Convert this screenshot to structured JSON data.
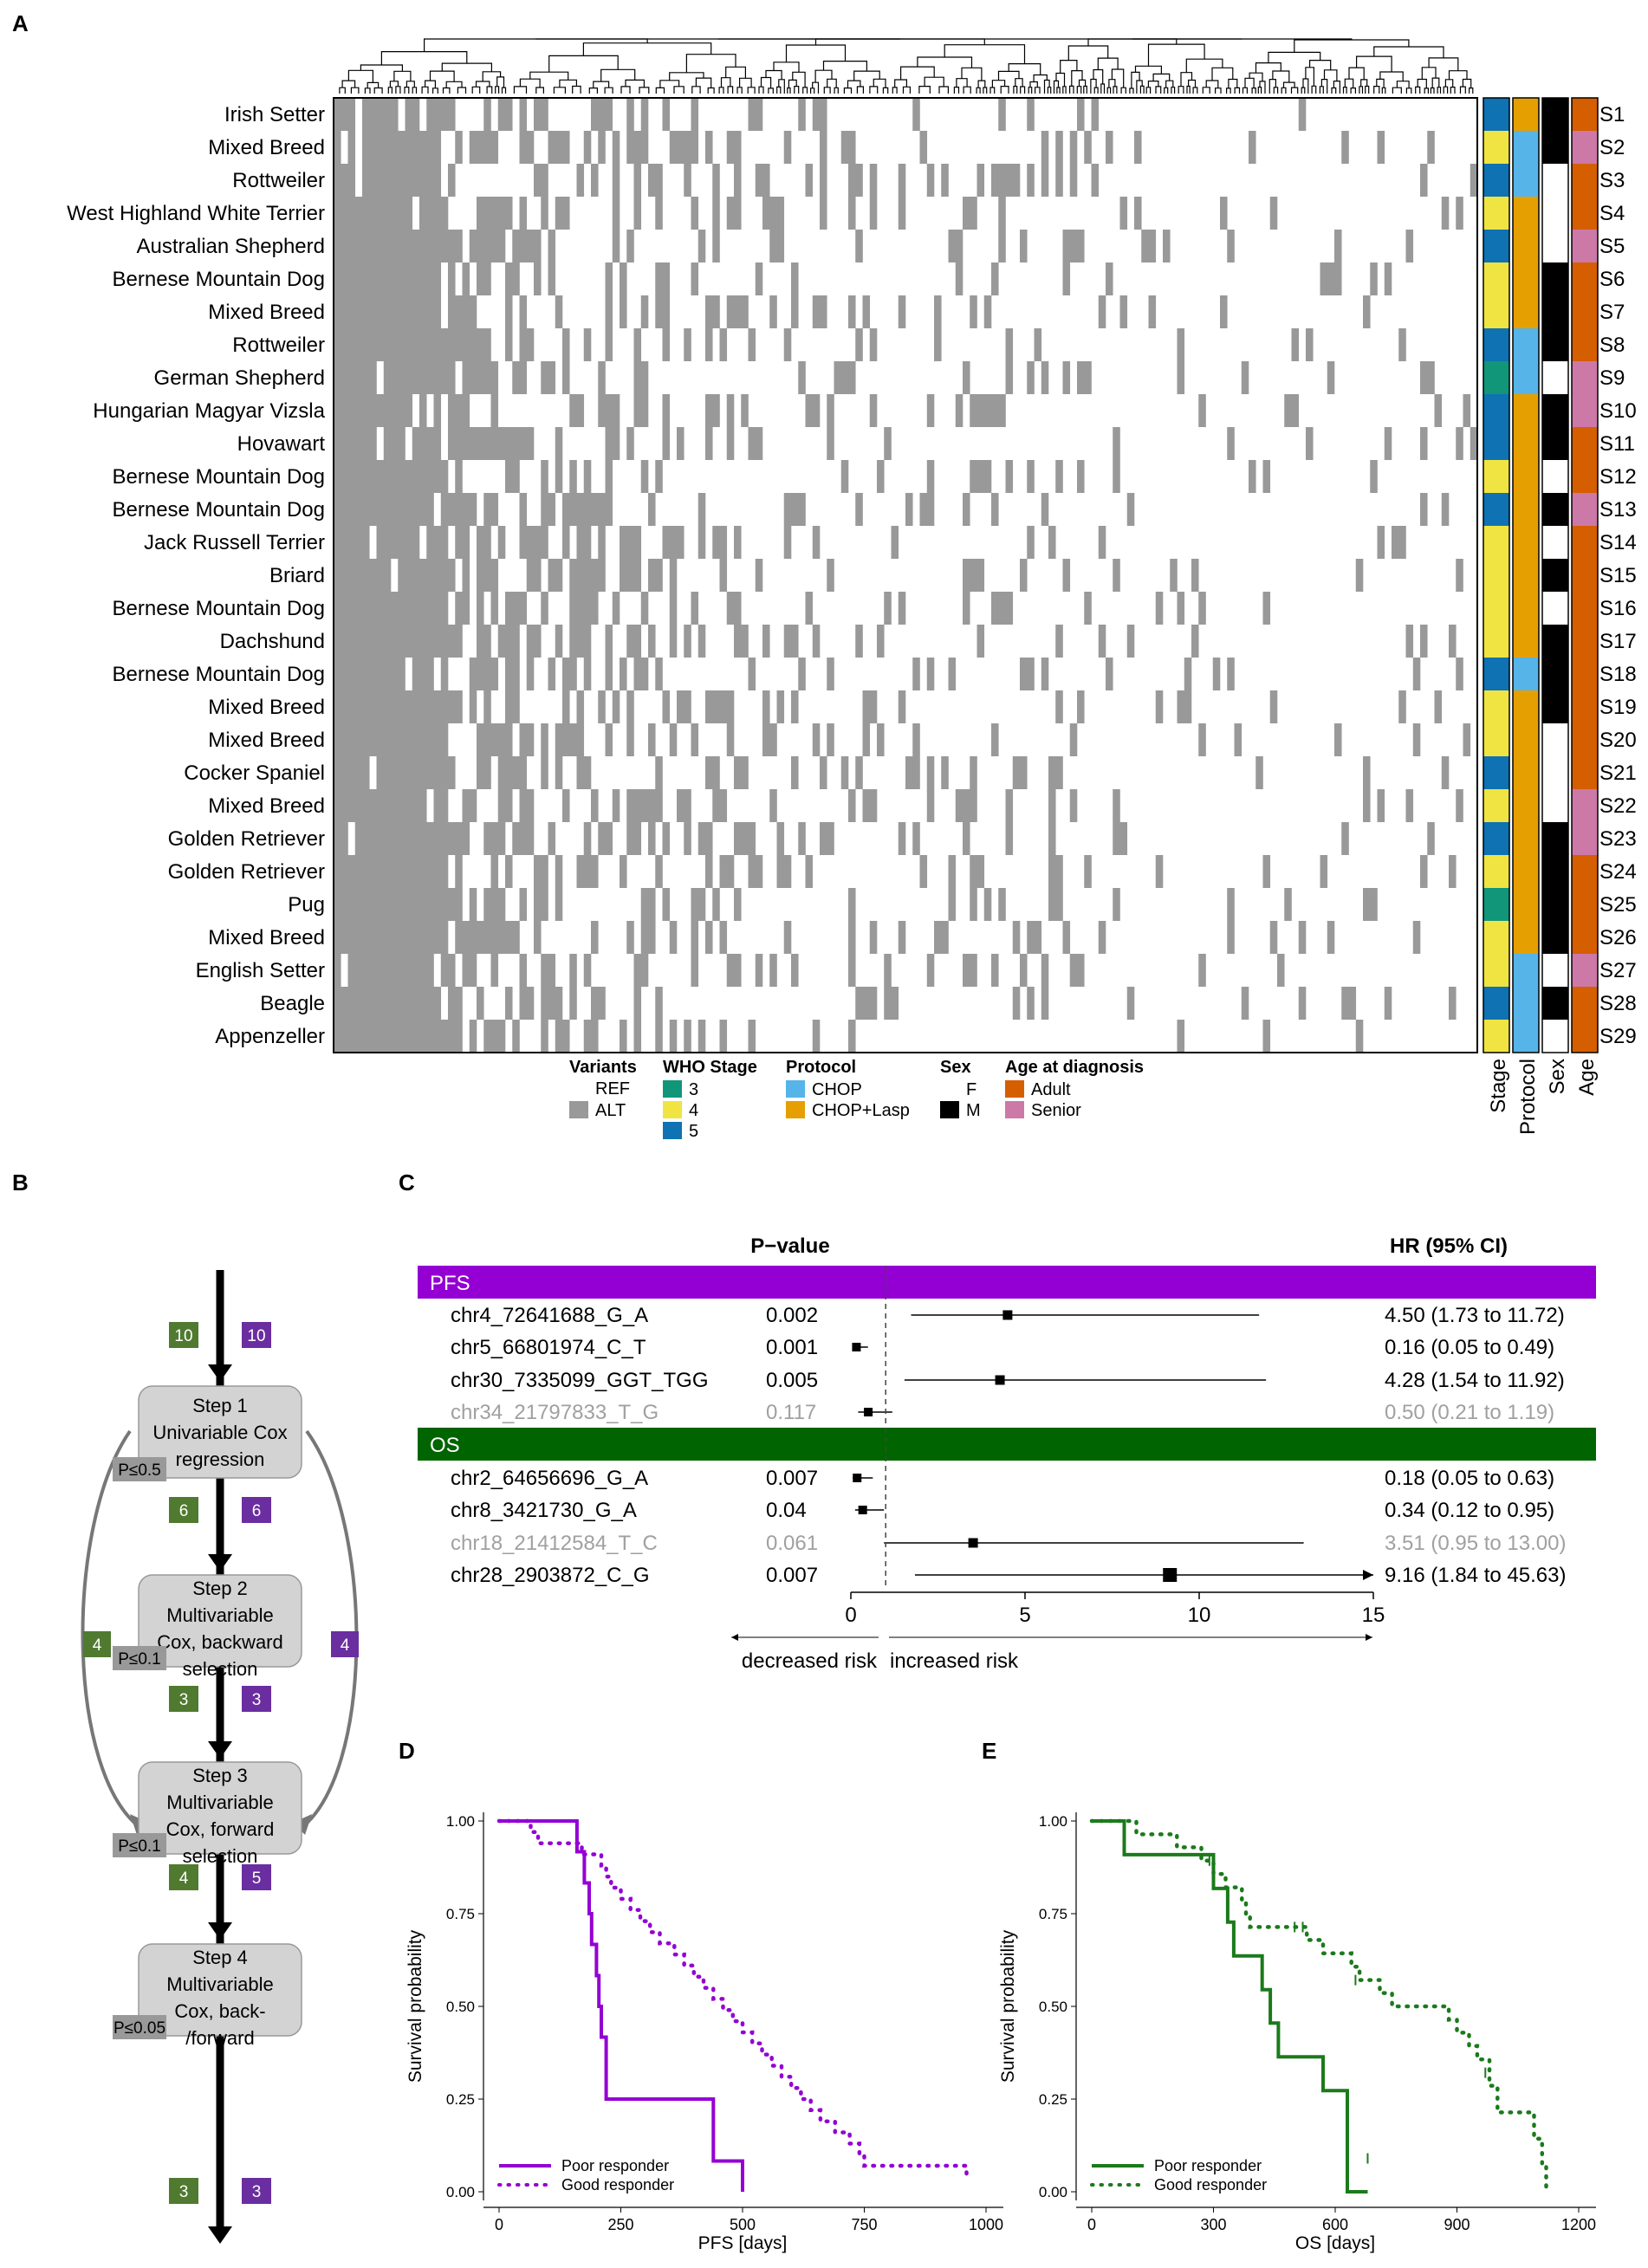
{
  "panel_labels": {
    "a": "A",
    "b": "B",
    "c": "C",
    "d": "D",
    "e": "E"
  },
  "heatmap": {
    "rows": [
      {
        "breed": "Irish Setter",
        "id": "S1",
        "stage": 5,
        "protocol": "CHOP+Lasp",
        "sex": "M",
        "age": "Adult"
      },
      {
        "breed": "Mixed Breed",
        "id": "S2",
        "stage": 4,
        "protocol": "CHOP",
        "sex": "M",
        "age": "Senior"
      },
      {
        "breed": "Rottweiler",
        "id": "S3",
        "stage": 5,
        "protocol": "CHOP",
        "sex": "F",
        "age": "Adult"
      },
      {
        "breed": "West Highland White Terrier",
        "id": "S4",
        "stage": 4,
        "protocol": "CHOP+Lasp",
        "sex": "F",
        "age": "Adult"
      },
      {
        "breed": "Australian Shepherd",
        "id": "S5",
        "stage": 5,
        "protocol": "CHOP+Lasp",
        "sex": "F",
        "age": "Senior"
      },
      {
        "breed": "Bernese Mountain Dog",
        "id": "S6",
        "stage": 4,
        "protocol": "CHOP+Lasp",
        "sex": "M",
        "age": "Adult"
      },
      {
        "breed": "Mixed Breed",
        "id": "S7",
        "stage": 4,
        "protocol": "CHOP+Lasp",
        "sex": "M",
        "age": "Adult"
      },
      {
        "breed": "Rottweiler",
        "id": "S8",
        "stage": 5,
        "protocol": "CHOP",
        "sex": "M",
        "age": "Adult"
      },
      {
        "breed": "German Shepherd",
        "id": "S9",
        "stage": 3,
        "protocol": "CHOP",
        "sex": "F",
        "age": "Senior"
      },
      {
        "breed": "Hungarian Magyar Vizsla",
        "id": "S10",
        "stage": 5,
        "protocol": "CHOP+Lasp",
        "sex": "M",
        "age": "Senior"
      },
      {
        "breed": "Hovawart",
        "id": "S11",
        "stage": 5,
        "protocol": "CHOP+Lasp",
        "sex": "M",
        "age": "Adult"
      },
      {
        "breed": "Bernese Mountain Dog",
        "id": "S12",
        "stage": 4,
        "protocol": "CHOP+Lasp",
        "sex": "F",
        "age": "Adult"
      },
      {
        "breed": "Bernese Mountain Dog",
        "id": "S13",
        "stage": 5,
        "protocol": "CHOP+Lasp",
        "sex": "M",
        "age": "Senior"
      },
      {
        "breed": "Jack Russell Terrier",
        "id": "S14",
        "stage": 4,
        "protocol": "CHOP+Lasp",
        "sex": "F",
        "age": "Adult"
      },
      {
        "breed": "Briard",
        "id": "S15",
        "stage": 4,
        "protocol": "CHOP+Lasp",
        "sex": "M",
        "age": "Adult"
      },
      {
        "breed": "Bernese Mountain Dog",
        "id": "S16",
        "stage": 4,
        "protocol": "CHOP+Lasp",
        "sex": "F",
        "age": "Adult"
      },
      {
        "breed": "Dachshund",
        "id": "S17",
        "stage": 4,
        "protocol": "CHOP+Lasp",
        "sex": "M",
        "age": "Adult"
      },
      {
        "breed": "Bernese Mountain Dog",
        "id": "S18",
        "stage": 5,
        "protocol": "CHOP",
        "sex": "M",
        "age": "Adult"
      },
      {
        "breed": "Mixed Breed",
        "id": "S19",
        "stage": 4,
        "protocol": "CHOP+Lasp",
        "sex": "M",
        "age": "Adult"
      },
      {
        "breed": "Mixed Breed",
        "id": "S20",
        "stage": 4,
        "protocol": "CHOP+Lasp",
        "sex": "F",
        "age": "Adult"
      },
      {
        "breed": "Cocker Spaniel",
        "id": "S21",
        "stage": 5,
        "protocol": "CHOP+Lasp",
        "sex": "F",
        "age": "Adult"
      },
      {
        "breed": "Mixed Breed",
        "id": "S22",
        "stage": 4,
        "protocol": "CHOP+Lasp",
        "sex": "F",
        "age": "Senior"
      },
      {
        "breed": "Golden Retriever",
        "id": "S23",
        "stage": 5,
        "protocol": "CHOP+Lasp",
        "sex": "M",
        "age": "Senior"
      },
      {
        "breed": "Golden Retriever",
        "id": "S24",
        "stage": 4,
        "protocol": "CHOP+Lasp",
        "sex": "M",
        "age": "Adult"
      },
      {
        "breed": "Pug",
        "id": "S25",
        "stage": 3,
        "protocol": "CHOP+Lasp",
        "sex": "M",
        "age": "Adult"
      },
      {
        "breed": "Mixed Breed",
        "id": "S26",
        "stage": 4,
        "protocol": "CHOP+Lasp",
        "sex": "M",
        "age": "Adult"
      },
      {
        "breed": "English Setter",
        "id": "S27",
        "stage": 4,
        "protocol": "CHOP",
        "sex": "F",
        "age": "Senior"
      },
      {
        "breed": "Beagle",
        "id": "S28",
        "stage": 5,
        "protocol": "CHOP",
        "sex": "M",
        "age": "Adult"
      },
      {
        "breed": "Appenzeller",
        "id": "S29",
        "stage": 4,
        "protocol": "CHOP",
        "sex": "F",
        "age": "Adult"
      }
    ],
    "annotation_labels": [
      "Stage",
      "Protocol",
      "Sex",
      "Age"
    ],
    "legend": {
      "variants": {
        "title": "Variants",
        "items": [
          "REF",
          "ALT"
        ]
      },
      "stage": {
        "title": "WHO Stage",
        "items": [
          "3",
          "4",
          "5"
        ]
      },
      "protocol": {
        "title": "Protocol",
        "items": [
          "CHOP",
          "CHOP+Lasp"
        ]
      },
      "sex": {
        "title": "Sex",
        "items": [
          "F",
          "M"
        ]
      },
      "age": {
        "title": "Age at diagnosis",
        "items": [
          "Adult",
          "Senior"
        ]
      }
    },
    "colors": {
      "alt": "#999999",
      "ref": "#ffffff",
      "stage3": "#11967a",
      "stage4": "#f0e442",
      "stage5": "#0f72b2",
      "chop": "#56b4e9",
      "chop_lasp": "#e69f00",
      "sex_m": "#000000",
      "sex_f": "#ffffff",
      "adult": "#d55e00",
      "senior": "#cc79a7"
    }
  },
  "flowchart": {
    "steps": [
      {
        "label": "Step 1\nUnivariable Cox\nregression",
        "threshold": "P≤0.5"
      },
      {
        "label": "Step 2\nMultivariable\nCox, backward\nselection",
        "threshold": "P≤0.1"
      },
      {
        "label": "Step 3\nMultivariable\nCox, forward\nselection",
        "threshold": "P≤0.1"
      },
      {
        "label": "Step 4\nMultivariable\nCox, back-\n/forward",
        "threshold": "P≤0.05"
      }
    ],
    "counts": [
      {
        "pfs": "10",
        "os": "10"
      },
      {
        "pfs": "6",
        "os": "6"
      },
      {
        "pfs": "3",
        "os": "3"
      },
      {
        "pfs": "4",
        "os": "5"
      },
      {
        "pfs": "3",
        "os": "3"
      }
    ],
    "bypass": {
      "pfs": "4",
      "os": "4"
    },
    "colors": {
      "pfs_box": "#4f7a30",
      "os_box": "#6a2ea0",
      "step_box": "#d3d3d3",
      "threshold_box": "#999999"
    }
  },
  "chart_data": [
    {
      "type": "forest",
      "header_pvalue": "P−value",
      "header_hr": "HR (95% CI)",
      "groups": [
        {
          "name": "PFS",
          "color": "#9400d3",
          "rows": [
            {
              "variant": "chr4_72641688_G_A",
              "p": "0.002",
              "hr": 4.5,
              "lo": 1.73,
              "hi": 11.72,
              "text": "4.50 (1.73 to 11.72)",
              "significant": true
            },
            {
              "variant": "chr5_66801974_C_T",
              "p": "0.001",
              "hr": 0.16,
              "lo": 0.05,
              "hi": 0.49,
              "text": "0.16 (0.05 to 0.49)",
              "significant": true
            },
            {
              "variant": "chr30_7335099_GGT_TGG",
              "p": "0.005",
              "hr": 4.28,
              "lo": 1.54,
              "hi": 11.92,
              "text": "4.28 (1.54 to 11.92)",
              "significant": true
            },
            {
              "variant": "chr34_21797833_T_G",
              "p": "0.117",
              "hr": 0.5,
              "lo": 0.21,
              "hi": 1.19,
              "text": "0.50 (0.21 to 1.19)",
              "significant": false
            }
          ]
        },
        {
          "name": "OS",
          "color": "#006400",
          "rows": [
            {
              "variant": "chr2_64656696_G_A",
              "p": "0.007",
              "hr": 0.18,
              "lo": 0.05,
              "hi": 0.63,
              "text": "0.18 (0.05 to 0.63)",
              "significant": true
            },
            {
              "variant": "chr8_3421730_G_A",
              "p": "0.04",
              "hr": 0.34,
              "lo": 0.12,
              "hi": 0.95,
              "text": "0.34 (0.12 to 0.95)",
              "significant": true
            },
            {
              "variant": "chr18_21412584_T_C",
              "p": "0.061",
              "hr": 3.51,
              "lo": 0.95,
              "hi": 13.0,
              "text": "3.51 (0.95 to 13.00)",
              "significant": false
            },
            {
              "variant": "chr28_2903872_C_G",
              "p": "0.007",
              "hr": 9.16,
              "lo": 1.84,
              "hi": 45.63,
              "text": "9.16 (1.84 to 45.63)",
              "significant": true
            }
          ]
        }
      ],
      "xlim": [
        0,
        15
      ],
      "xticks": [
        0,
        5,
        10,
        15
      ],
      "ref_line": 1,
      "arrow_left": "decreased risk",
      "arrow_right": "increased risk"
    },
    {
      "type": "line",
      "title": "",
      "xlabel": "PFS [days]",
      "ylabel": "Survival probability",
      "xlim": [
        0,
        1000
      ],
      "ylim": [
        0,
        1
      ],
      "xticks": [
        0,
        250,
        500,
        750,
        1000
      ],
      "yticks": [
        "0.00",
        "0.25",
        "0.50",
        "0.75",
        "1.00"
      ],
      "series": [
        {
          "name": "Poor responder",
          "style": "solid",
          "color": "#9400d3",
          "steps": [
            [
              0,
              1.0
            ],
            [
              140,
              1.0
            ],
            [
              160,
              0.917
            ],
            [
              175,
              0.833
            ],
            [
              185,
              0.75
            ],
            [
              190,
              0.667
            ],
            [
              200,
              0.583
            ],
            [
              205,
              0.5
            ],
            [
              210,
              0.417
            ],
            [
              220,
              0.25
            ],
            [
              430,
              0.25
            ],
            [
              440,
              0.083
            ],
            [
              500,
              0.083
            ],
            [
              500,
              0.0
            ]
          ]
        },
        {
          "name": "Good responder",
          "style": "dotted",
          "color": "#9400d3",
          "steps": [
            [
              0,
              1.0
            ],
            [
              60,
              1.0
            ],
            [
              65,
              0.97
            ],
            [
              75,
              0.97
            ],
            [
              80,
              0.94
            ],
            [
              160,
              0.94
            ],
            [
              170,
              0.91
            ],
            [
              200,
              0.91
            ],
            [
              210,
              0.88
            ],
            [
              220,
              0.85
            ],
            [
              230,
              0.82
            ],
            [
              250,
              0.79
            ],
            [
              270,
              0.76
            ],
            [
              290,
              0.73
            ],
            [
              310,
              0.7
            ],
            [
              330,
              0.67
            ],
            [
              360,
              0.64
            ],
            [
              380,
              0.61
            ],
            [
              400,
              0.58
            ],
            [
              420,
              0.55
            ],
            [
              440,
              0.52
            ],
            [
              460,
              0.49
            ],
            [
              480,
              0.46
            ],
            [
              500,
              0.43
            ],
            [
              520,
              0.4
            ],
            [
              540,
              0.37
            ],
            [
              560,
              0.34
            ],
            [
              580,
              0.31
            ],
            [
              600,
              0.28
            ],
            [
              620,
              0.25
            ],
            [
              640,
              0.22
            ],
            [
              660,
              0.19
            ],
            [
              690,
              0.16
            ],
            [
              720,
              0.13
            ],
            [
              740,
              0.1
            ],
            [
              750,
              0.07
            ],
            [
              960,
              0.07
            ],
            [
              960,
              0.04
            ]
          ]
        }
      ]
    },
    {
      "type": "line",
      "title": "",
      "xlabel": "OS [days]",
      "ylabel": "Survival probability",
      "xlim": [
        0,
        1200
      ],
      "ylim": [
        0,
        1
      ],
      "xticks": [
        0,
        300,
        600,
        900,
        1200
      ],
      "yticks": [
        "0.00",
        "0.25",
        "0.50",
        "0.75",
        "1.00"
      ],
      "series": [
        {
          "name": "Poor responder",
          "style": "solid",
          "color": "#1b7a1b",
          "steps": [
            [
              0,
              1.0
            ],
            [
              75,
              1.0
            ],
            [
              80,
              0.909
            ],
            [
              290,
              0.909
            ],
            [
              300,
              0.818
            ],
            [
              330,
              0.818
            ],
            [
              335,
              0.727
            ],
            [
              350,
              0.636
            ],
            [
              415,
              0.636
            ],
            [
              420,
              0.545
            ],
            [
              440,
              0.455
            ],
            [
              460,
              0.364
            ],
            [
              560,
              0.364
            ],
            [
              570,
              0.273
            ],
            [
              620,
              0.273
            ],
            [
              630,
              0.0
            ],
            [
              680,
              0.0
            ]
          ],
          "censor": [
            [
              680,
              0.09
            ]
          ]
        },
        {
          "name": "Good responder",
          "style": "dotted",
          "color": "#1b7a1b",
          "steps": [
            [
              0,
              1.0
            ],
            [
              100,
              1.0
            ],
            [
              110,
              0.964
            ],
            [
              200,
              0.964
            ],
            [
              210,
              0.929
            ],
            [
              260,
              0.929
            ],
            [
              270,
              0.893
            ],
            [
              300,
              0.857
            ],
            [
              330,
              0.821
            ],
            [
              370,
              0.786
            ],
            [
              380,
              0.75
            ],
            [
              390,
              0.714
            ],
            [
              520,
              0.714
            ],
            [
              530,
              0.679
            ],
            [
              570,
              0.643
            ],
            [
              640,
              0.607
            ],
            [
              660,
              0.571
            ],
            [
              710,
              0.536
            ],
            [
              740,
              0.5
            ],
            [
              860,
              0.5
            ],
            [
              880,
              0.464
            ],
            [
              900,
              0.429
            ],
            [
              930,
              0.393
            ],
            [
              950,
              0.357
            ],
            [
              980,
              0.286
            ],
            [
              1000,
              0.214
            ],
            [
              1080,
              0.214
            ],
            [
              1090,
              0.143
            ],
            [
              1110,
              0.071
            ],
            [
              1120,
              0.0
            ]
          ],
          "censor": [
            [
              290,
              0.893
            ],
            [
              500,
              0.714
            ],
            [
              520,
              0.714
            ],
            [
              650,
              0.571
            ],
            [
              970,
              0.321
            ]
          ]
        }
      ]
    }
  ]
}
